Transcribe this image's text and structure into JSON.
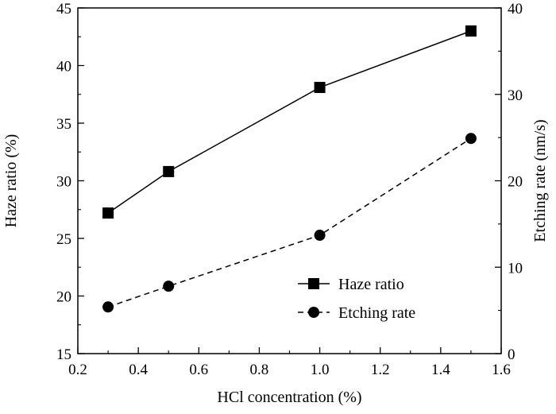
{
  "chart_data": {
    "type": "line",
    "x": [
      0.3,
      0.5,
      1.0,
      1.5
    ],
    "xlabel": "HCl concentration (%)",
    "ylabel_left": "Haze ratio (%)",
    "ylabel_right": "Etching rate (nm/s)",
    "xlim": [
      0.2,
      1.6
    ],
    "ylim_left": [
      15,
      45
    ],
    "ylim_right": [
      0,
      40
    ],
    "x_ticks": [
      "0.2",
      "0.4",
      "0.6",
      "0.8",
      "1.0",
      "1.2",
      "1.4",
      "1.6"
    ],
    "y_left_ticks": [
      "15",
      "20",
      "25",
      "30",
      "35",
      "40",
      "45"
    ],
    "y_right_ticks": [
      "0",
      "10",
      "20",
      "30",
      "40"
    ],
    "grid": false,
    "legend_position": "bottom-right",
    "series": [
      {
        "name": "Haze ratio",
        "axis": "left",
        "marker": "square",
        "line_style": "solid",
        "values": [
          27.2,
          30.8,
          38.1,
          43.0
        ]
      },
      {
        "name": "Etching rate",
        "axis": "right",
        "marker": "circle",
        "line_style": "dashed",
        "values": [
          5.4,
          7.8,
          13.7,
          24.9
        ]
      }
    ]
  }
}
